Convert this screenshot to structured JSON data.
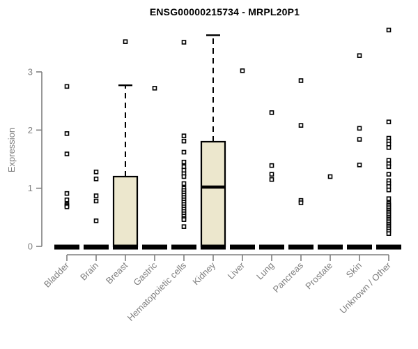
{
  "chart_data": {
    "type": "boxplot",
    "title": "ENSG00000215734 - MRPL20P1",
    "ylabel": "Expression",
    "xlabel": "",
    "yticks": [
      0,
      1,
      2,
      3
    ],
    "ylim": [
      0,
      3.85
    ],
    "grid": false,
    "legend_position": "none",
    "x_tick_rotation": 45,
    "categories": [
      "Bladder",
      "Brain",
      "Breast",
      "Gastric",
      "Hematopoietic cells",
      "Kidney",
      "Liver",
      "Lung",
      "Pancreas",
      "Prostate",
      "Skin",
      "Unknown / Other"
    ],
    "boxes": [
      {
        "category": "Bladder",
        "q1": 0,
        "median": 0,
        "q3": 0,
        "whisker_low": 0,
        "whisker_high": 0,
        "outliers": [
          2.75,
          1.94,
          1.59,
          0.91,
          0.8,
          0.72,
          0.7,
          0.68
        ]
      },
      {
        "category": "Brain",
        "q1": 0,
        "median": 0,
        "q3": 0,
        "whisker_low": 0,
        "whisker_high": 0,
        "outliers": [
          1.28,
          1.16,
          0.87,
          0.78,
          0.44
        ]
      },
      {
        "category": "Breast",
        "q1": 0,
        "median": 0,
        "q3": 1.2,
        "whisker_low": 0,
        "whisker_high": 2.77,
        "outliers": [
          3.52
        ]
      },
      {
        "category": "Gastric",
        "q1": 0,
        "median": 0,
        "q3": 0,
        "whisker_low": 0,
        "whisker_high": 0,
        "outliers": [
          2.72
        ]
      },
      {
        "category": "Hematopoietic cells",
        "q1": 0,
        "median": 0,
        "q3": 0,
        "whisker_low": 0,
        "whisker_high": 0,
        "outliers": [
          3.51,
          1.9,
          1.81,
          1.62,
          1.45,
          1.37,
          1.31,
          1.25,
          1.2,
          1.08,
          1.0,
          0.96,
          0.92,
          0.88,
          0.84,
          0.8,
          0.76,
          0.72,
          0.68,
          0.64,
          0.6,
          0.56,
          0.52,
          0.48,
          0.46,
          0.34
        ]
      },
      {
        "category": "Kidney",
        "q1": 0,
        "median": 1.02,
        "q3": 1.8,
        "whisker_low": 0,
        "whisker_high": 3.63,
        "outliers": []
      },
      {
        "category": "Liver",
        "q1": 0,
        "median": 0,
        "q3": 0,
        "whisker_low": 0,
        "whisker_high": 0,
        "outliers": [
          3.02
        ]
      },
      {
        "category": "Lung",
        "q1": 0,
        "median": 0,
        "q3": 0,
        "whisker_low": 0,
        "whisker_high": 0,
        "outliers": [
          2.3,
          1.39,
          1.24,
          1.15
        ]
      },
      {
        "category": "Pancreas",
        "q1": 0,
        "median": 0,
        "q3": 0,
        "whisker_low": 0,
        "whisker_high": 0,
        "outliers": [
          2.85,
          2.08,
          0.79,
          0.75
        ]
      },
      {
        "category": "Prostate",
        "q1": 0,
        "median": 0,
        "q3": 0,
        "whisker_low": 0,
        "whisker_high": 0,
        "outliers": [
          1.2
        ]
      },
      {
        "category": "Skin",
        "q1": 0,
        "median": 0,
        "q3": 0,
        "whisker_low": 0,
        "whisker_high": 0,
        "outliers": [
          3.28,
          2.03,
          1.84,
          1.4
        ]
      },
      {
        "category": "Unknown / Other",
        "q1": 0,
        "median": 0,
        "q3": 0,
        "whisker_low": 0,
        "whisker_high": 0,
        "outliers": [
          3.72,
          2.14,
          1.86,
          1.81,
          1.76,
          1.7,
          1.48,
          1.42,
          1.37,
          1.24,
          1.13,
          1.08,
          1.03,
          0.97,
          0.82,
          0.74,
          0.71,
          0.68,
          0.65,
          0.62,
          0.59,
          0.56,
          0.53,
          0.5,
          0.47,
          0.44,
          0.41,
          0.38,
          0.35,
          0.32,
          0.29,
          0.26,
          0.22
        ]
      }
    ],
    "style": {
      "box_fill": "#ECE7CD",
      "box_stroke": "#000000",
      "median_color": "#000000",
      "whisker_color": "#000000",
      "outlier_fill": "#ffffff",
      "outlier_stroke": "#000000",
      "axis_color": "#7f7f7f",
      "tick_label_color": "#7f7f7f",
      "title_color": "#000000"
    }
  }
}
